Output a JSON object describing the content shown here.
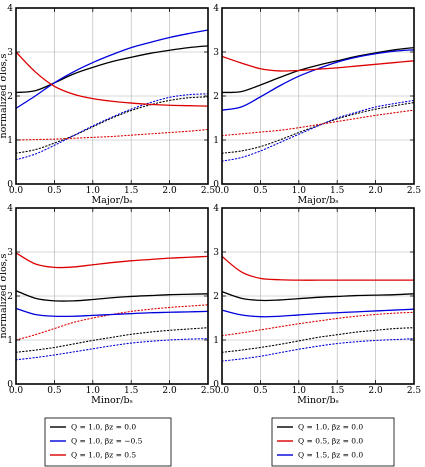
{
  "legends": [
    {
      "entries": [
        {
          "label": "Q = 1.0, βz = 0.0",
          "color": "#000000"
        },
        {
          "label": "Q = 1.0, βz = −0.5",
          "color": "#0000dd"
        },
        {
          "label": "Q = 1.0, βz = 0.5",
          "color": "#dd0000"
        }
      ]
    },
    {
      "entries": [
        {
          "label": "Q = 1.0, βz = 0.0",
          "color": "#000000"
        },
        {
          "label": "Q = 0.5, βz = 0.0",
          "color": "#dd0000"
        },
        {
          "label": "Q = 1.5, βz = 0.0",
          "color": "#0000dd"
        }
      ]
    }
  ],
  "chart_data": [
    {
      "type": "line",
      "xlabel": "Major/bₛ",
      "ylabel": "normalized σlos,s",
      "xlim": [
        0,
        2.5
      ],
      "ylim": [
        0,
        4
      ],
      "xticks": [
        "0.0",
        "0.5",
        "1.0",
        "1.5",
        "2.0",
        "2.5"
      ],
      "yticks": [
        "0",
        "1",
        "2",
        "3",
        "4"
      ],
      "grid": true,
      "x": [
        0,
        0.25,
        0.5,
        0.75,
        1.0,
        1.25,
        1.5,
        1.75,
        2.0,
        2.25,
        2.5
      ],
      "series": [
        {
          "color": "#000000",
          "style": "solid",
          "values": [
            2.08,
            2.12,
            2.3,
            2.5,
            2.65,
            2.78,
            2.88,
            2.97,
            3.04,
            3.1,
            3.14
          ]
        },
        {
          "color": "#0000dd",
          "style": "solid",
          "values": [
            1.72,
            2.0,
            2.3,
            2.55,
            2.76,
            2.94,
            3.1,
            3.22,
            3.33,
            3.42,
            3.5
          ]
        },
        {
          "color": "#dd0000",
          "style": "solid",
          "values": [
            3.0,
            2.55,
            2.22,
            2.04,
            1.94,
            1.88,
            1.84,
            1.81,
            1.79,
            1.78,
            1.77
          ]
        },
        {
          "color": "#000000",
          "style": "dotted",
          "values": [
            0.7,
            0.78,
            0.93,
            1.1,
            1.3,
            1.5,
            1.67,
            1.8,
            1.9,
            1.96,
            1.98
          ]
        },
        {
          "color": "#0000dd",
          "style": "dotted",
          "values": [
            0.55,
            0.68,
            0.88,
            1.1,
            1.32,
            1.52,
            1.7,
            1.85,
            1.97,
            2.03,
            2.05
          ]
        },
        {
          "color": "#dd0000",
          "style": "dotted",
          "values": [
            1.0,
            1.01,
            1.02,
            1.04,
            1.06,
            1.08,
            1.11,
            1.14,
            1.17,
            1.2,
            1.24
          ]
        }
      ]
    },
    {
      "type": "line",
      "xlabel": "Major/bₛ",
      "ylabel": "",
      "xlim": [
        0,
        2.5
      ],
      "ylim": [
        0,
        4
      ],
      "xticks": [
        "0.0",
        "0.5",
        "1.0",
        "1.5",
        "2.0",
        "2.5"
      ],
      "yticks": [
        "0",
        "1",
        "2",
        "3",
        "4"
      ],
      "grid": true,
      "x": [
        0,
        0.25,
        0.5,
        0.75,
        1.0,
        1.25,
        1.5,
        1.75,
        2.0,
        2.25,
        2.5
      ],
      "series": [
        {
          "color": "#000000",
          "style": "solid",
          "values": [
            2.08,
            2.1,
            2.25,
            2.42,
            2.58,
            2.7,
            2.8,
            2.9,
            2.98,
            3.05,
            3.1
          ]
        },
        {
          "color": "#0000dd",
          "style": "solid",
          "values": [
            1.68,
            1.75,
            1.98,
            2.23,
            2.45,
            2.62,
            2.77,
            2.88,
            2.96,
            3.02,
            3.05
          ]
        },
        {
          "color": "#dd0000",
          "style": "solid",
          "values": [
            2.9,
            2.75,
            2.62,
            2.57,
            2.58,
            2.61,
            2.64,
            2.68,
            2.72,
            2.76,
            2.8
          ]
        },
        {
          "color": "#000000",
          "style": "dotted",
          "values": [
            0.7,
            0.75,
            0.85,
            1.0,
            1.17,
            1.33,
            1.48,
            1.6,
            1.7,
            1.78,
            1.85
          ]
        },
        {
          "color": "#0000dd",
          "style": "dotted",
          "values": [
            0.52,
            0.6,
            0.75,
            0.94,
            1.13,
            1.32,
            1.5,
            1.63,
            1.75,
            1.83,
            1.9
          ]
        },
        {
          "color": "#dd0000",
          "style": "dotted",
          "values": [
            1.1,
            1.14,
            1.18,
            1.22,
            1.28,
            1.35,
            1.42,
            1.49,
            1.56,
            1.62,
            1.68
          ]
        }
      ]
    },
    {
      "type": "line",
      "xlabel": "Minor/bₛ",
      "ylabel": "normalized σlos,s",
      "xlim": [
        0,
        2.5
      ],
      "ylim": [
        0,
        4
      ],
      "xticks": [
        "0.0",
        "0.5",
        "1.0",
        "1.5",
        "2.0",
        "2.5"
      ],
      "yticks": [
        "0",
        "1",
        "2",
        "3",
        "4"
      ],
      "grid": true,
      "x": [
        0,
        0.25,
        0.5,
        0.75,
        1.0,
        1.25,
        1.5,
        1.75,
        2.0,
        2.25,
        2.5
      ],
      "series": [
        {
          "color": "#000000",
          "style": "solid",
          "values": [
            2.12,
            1.95,
            1.89,
            1.89,
            1.92,
            1.96,
            1.99,
            2.01,
            2.03,
            2.04,
            2.05
          ]
        },
        {
          "color": "#0000dd",
          "style": "solid",
          "values": [
            1.72,
            1.58,
            1.54,
            1.54,
            1.56,
            1.58,
            1.6,
            1.62,
            1.63,
            1.64,
            1.65
          ]
        },
        {
          "color": "#dd0000",
          "style": "solid",
          "values": [
            2.98,
            2.73,
            2.65,
            2.66,
            2.71,
            2.76,
            2.8,
            2.83,
            2.86,
            2.88,
            2.9
          ]
        },
        {
          "color": "#000000",
          "style": "dotted",
          "values": [
            0.72,
            0.77,
            0.83,
            0.91,
            0.99,
            1.06,
            1.13,
            1.18,
            1.22,
            1.25,
            1.28
          ]
        },
        {
          "color": "#0000dd",
          "style": "dotted",
          "values": [
            0.55,
            0.6,
            0.66,
            0.73,
            0.8,
            0.87,
            0.93,
            0.97,
            1.0,
            1.02,
            1.03
          ]
        },
        {
          "color": "#dd0000",
          "style": "dotted",
          "values": [
            1.0,
            1.12,
            1.26,
            1.4,
            1.5,
            1.58,
            1.65,
            1.7,
            1.74,
            1.77,
            1.8
          ]
        }
      ]
    },
    {
      "type": "line",
      "xlabel": "Minor/bₛ",
      "ylabel": "",
      "xlim": [
        0,
        2.5
      ],
      "ylim": [
        0,
        4
      ],
      "xticks": [
        "0.0",
        "0.5",
        "1.0",
        "1.5",
        "2.0",
        "2.5"
      ],
      "yticks": [
        "0",
        "1",
        "2",
        "3",
        "4"
      ],
      "grid": true,
      "x": [
        0,
        0.25,
        0.5,
        0.75,
        1.0,
        1.25,
        1.5,
        1.75,
        2.0,
        2.25,
        2.5
      ],
      "series": [
        {
          "color": "#000000",
          "style": "solid",
          "values": [
            2.1,
            1.95,
            1.9,
            1.91,
            1.94,
            1.97,
            1.99,
            2.01,
            2.02,
            2.03,
            2.05
          ]
        },
        {
          "color": "#0000dd",
          "style": "solid",
          "values": [
            1.68,
            1.57,
            1.53,
            1.54,
            1.57,
            1.6,
            1.62,
            1.64,
            1.66,
            1.68,
            1.7
          ]
        },
        {
          "color": "#dd0000",
          "style": "solid",
          "values": [
            2.9,
            2.55,
            2.4,
            2.37,
            2.36,
            2.36,
            2.36,
            2.36,
            2.36,
            2.36,
            2.36
          ]
        },
        {
          "color": "#000000",
          "style": "dotted",
          "values": [
            0.72,
            0.77,
            0.83,
            0.9,
            0.98,
            1.06,
            1.12,
            1.18,
            1.22,
            1.26,
            1.28
          ]
        },
        {
          "color": "#0000dd",
          "style": "dotted",
          "values": [
            0.52,
            0.57,
            0.63,
            0.71,
            0.79,
            0.86,
            0.92,
            0.96,
            0.99,
            1.01,
            1.03
          ]
        },
        {
          "color": "#dd0000",
          "style": "dotted",
          "values": [
            1.1,
            1.16,
            1.23,
            1.3,
            1.37,
            1.43,
            1.49,
            1.54,
            1.58,
            1.61,
            1.63
          ]
        }
      ]
    }
  ]
}
